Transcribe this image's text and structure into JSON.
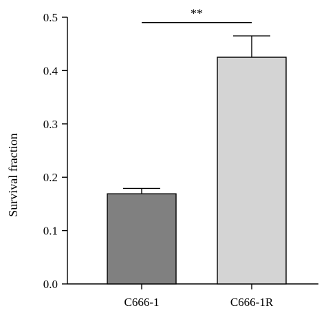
{
  "chart_data": {
    "type": "bar",
    "title": "",
    "xlabel": "",
    "ylabel": "Survival fraction",
    "categories": [
      "C666-1",
      "C666-1R"
    ],
    "values": [
      0.169,
      0.425
    ],
    "error": [
      0.01,
      0.04
    ],
    "colors": [
      "#808080",
      "#d4d4d4"
    ],
    "edge_color": "#000000",
    "ylim": [
      0,
      0.5
    ],
    "yticks": [
      0.0,
      0.1,
      0.2,
      0.3,
      0.4,
      0.5
    ],
    "ytick_labels": [
      "0.0",
      "0.1",
      "0.2",
      "0.3",
      "0.4",
      "0.5"
    ],
    "grid": false,
    "legend": "none",
    "significance": {
      "from": "C666-1",
      "to": "C666-1R",
      "label": "**",
      "level": 0.49
    }
  }
}
